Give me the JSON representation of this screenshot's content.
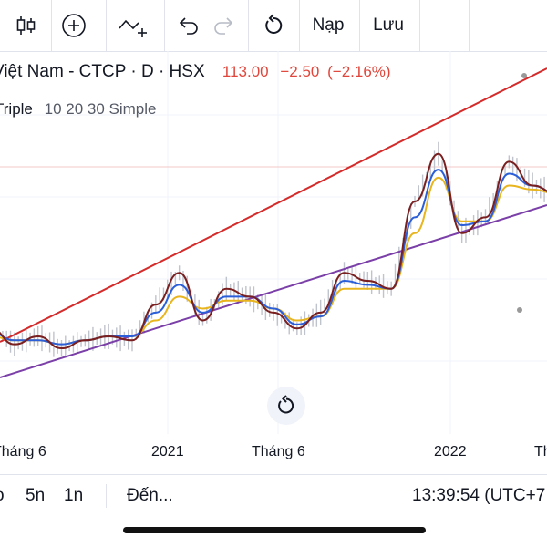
{
  "toolbar": {
    "load_label": "Nạp",
    "save_label": "Lưu"
  },
  "header": {
    "symbol_text": "Việt Nam - CTCP · D · HSX",
    "price": "113.00",
    "change": "−2.50",
    "change_pct": "(−2.16%)"
  },
  "indicator": {
    "name": "Triple",
    "params": "10 20 30 Simple"
  },
  "x_axis_labels": [
    "Tháng 6",
    "2021",
    "Tháng 6",
    "2022",
    "Th"
  ],
  "bottom_bar": {
    "range_items": [
      "o",
      "5n",
      "1n"
    ],
    "goto_label": "Đến...",
    "time": "13:39:54 (UTC+7"
  },
  "colors": {
    "price_down": "#e0463b",
    "channel_upper": "#d42a2a",
    "channel_lower": "#7b3fa8",
    "ma10": "#7a1f1f",
    "ma20": "#2b5fd9",
    "ma30": "#e8b51e",
    "candles": "#bfc3cc"
  },
  "chart_data": {
    "type": "line",
    "title": "Việt Nam - CTCP · D · HSX",
    "x": [
      "2020-05",
      "2020-06",
      "2020-07",
      "2020-08",
      "2020-09",
      "2020-10",
      "2020-11",
      "2020-12",
      "2021-01",
      "2021-02",
      "2021-03",
      "2021-04",
      "2021-05",
      "2021-06",
      "2021-07",
      "2021-08",
      "2021-09",
      "2021-10",
      "2021-11",
      "2021-12",
      "2022-01",
      "2022-02",
      "2022-03",
      "2022-04",
      "2022-05"
    ],
    "series": [
      {
        "name": "10",
        "values": [
          62,
          58,
          60,
          57,
          59,
          60,
          59,
          68,
          76,
          64,
          72,
          70,
          66,
          62,
          66,
          76,
          74,
          72,
          94,
          106,
          86,
          90,
          104,
          98,
          96
        ]
      },
      {
        "name": "20",
        "values": [
          61,
          59,
          59,
          58,
          59,
          60,
          60,
          66,
          73,
          66,
          70,
          70,
          67,
          63,
          65,
          74,
          73,
          72,
          90,
          102,
          88,
          89,
          101,
          98,
          96
        ]
      },
      {
        "name": "30",
        "values": [
          60,
          59,
          59,
          58,
          59,
          60,
          60,
          64,
          70,
          67,
          69,
          69,
          67,
          64,
          65,
          72,
          72,
          72,
          86,
          100,
          89,
          89,
          98,
          97,
          96
        ]
      }
    ],
    "trendlines": [
      {
        "name": "upper",
        "start": [
          "2020-05",
          60
        ],
        "end": [
          "2022-05",
          118
        ]
      },
      {
        "name": "lower",
        "start": [
          "2020-05",
          51
        ],
        "end": [
          "2022-05",
          93
        ]
      }
    ],
    "xlabel": "",
    "ylabel": "",
    "x_tick_labels": [
      "Tháng 6",
      "2021",
      "Tháng 6",
      "2022",
      "Th"
    ],
    "grid": true
  }
}
